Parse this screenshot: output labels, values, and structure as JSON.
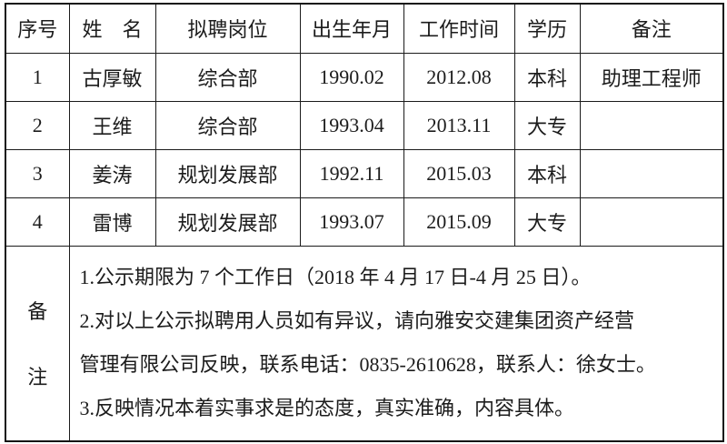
{
  "page": {
    "background": "#ffffff",
    "border_color": "#1b1b1b",
    "text_color": "#1c1c1c"
  },
  "table": {
    "headers": [
      "序号",
      "姓　名",
      "拟聘岗位",
      "出生年月",
      "工作时间",
      "学历",
      "备注"
    ],
    "rows": [
      [
        "1",
        "古厚敏",
        "综合部",
        "1990.02",
        "2012.08",
        "本科",
        "助理工程师"
      ],
      [
        "2",
        "王维",
        "综合部",
        "1993.04",
        "2013.11",
        "大专",
        ""
      ],
      [
        "3",
        "姜涛",
        "规划发展部",
        "1992.11",
        "2015.03",
        "本科",
        ""
      ],
      [
        "4",
        "雷博",
        "规划发展部",
        "1993.07",
        "2015.09",
        "大专",
        ""
      ]
    ],
    "remarks": {
      "label": [
        "备",
        "注"
      ],
      "lines": [
        "1.公示期限为 7 个工作日（2018 年 4 月 17 日-4 月 25 日）。",
        "2.对以上公示拟聘用人员如有异议，请向雅安交建集团资产经营",
        "管理有限公司反映，联系电话：0835-2610628，联系人：徐女士。",
        "3.反映情况本着实事求是的态度，真实准确，内容具体。"
      ]
    }
  }
}
